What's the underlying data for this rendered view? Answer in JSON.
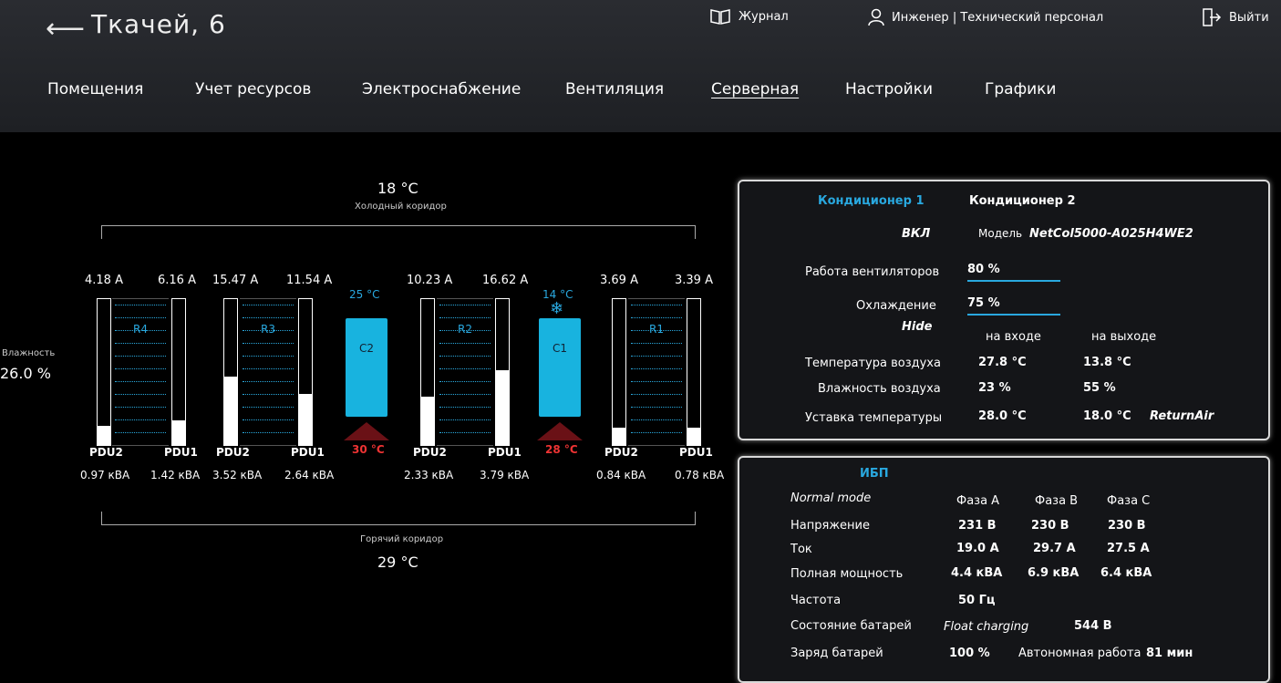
{
  "header": {
    "title": "Ткачей, 6",
    "journal": "Журнал",
    "user": "Инженер | Технический персонал",
    "logout": "Выйти"
  },
  "nav": [
    "Помещения",
    "Учет ресурсов",
    "Электроснабжение",
    "Вентиляция",
    "Серверная",
    "Настройки",
    "Графики"
  ],
  "nav_active": "Серверная",
  "room": {
    "cold_temp": "18 °С",
    "cold_label": "Холодный коридор",
    "hot_label": "Горячий коридор",
    "hot_temp": "29 °С",
    "humidity_label": "Влажность",
    "humidity_value": "26.0 %",
    "pdus": [
      {
        "amps": "4.18 A",
        "label": "PDU2",
        "kva": "0.97 кВА",
        "level": 0.13
      },
      {
        "amps": "6.16 A",
        "label": "PDU1",
        "kva": "1.42 кВА",
        "level": 0.17
      },
      {
        "amps": "15.47 A",
        "label": "PDU2",
        "kva": "3.52 кВА",
        "level": 0.47
      },
      {
        "amps": "11.54 A",
        "label": "PDU1",
        "kva": "2.64 кВА",
        "level": 0.35
      },
      {
        "amps": "10.23 A",
        "label": "PDU2",
        "kva": "2.33 кВА",
        "level": 0.33
      },
      {
        "amps": "16.62 A",
        "label": "PDU1",
        "kva": "3.79 кВА",
        "level": 0.51
      },
      {
        "amps": "3.69 A",
        "label": "PDU2",
        "kva": "0.84 кВА",
        "level": 0.12
      },
      {
        "amps": "3.39 A",
        "label": "PDU1",
        "kva": "0.78 кВА",
        "level": 0.12
      }
    ],
    "racks": [
      "R4",
      "R3",
      "R2",
      "R1"
    ],
    "coolers": [
      {
        "name": "C2",
        "top": "25 °С",
        "bottom": "30 °С"
      },
      {
        "name": "C1",
        "top": "14 °С",
        "bottom": "28 °С"
      }
    ]
  },
  "ac": {
    "tab1": "Кондиционер 1",
    "tab2": "Кондиционер 2",
    "state": "ВКЛ",
    "model_label": "Модель",
    "model_value": "NetCol5000-A025H4WE2",
    "fans_label": "Работа вентиляторов",
    "fans_value": "80 %",
    "fans_level": 0.8,
    "cooling_label": "Охлаждение",
    "cooling_value": "75 %",
    "cooling_level": 0.75,
    "hide": "Hide",
    "col_in": "на входе",
    "col_out": "на выходе",
    "rows": [
      {
        "label": "Температура воздуха",
        "in": "27.8 °С",
        "out": "13.8 °С"
      },
      {
        "label": "Влажность воздуха",
        "in": "23 %",
        "out": "55 %"
      },
      {
        "label": "Уставка температуры",
        "in": "28.0 °С",
        "out": "18.0 °С"
      }
    ],
    "return_air": "ReturnAir"
  },
  "ups": {
    "title": "ИБП",
    "mode": "Normal mode",
    "phases": [
      "Фаза А",
      "Фаза В",
      "Фаза С"
    ],
    "rows": [
      {
        "label": "Напряжение",
        "values": [
          "231 В",
          "230 В",
          "230 В"
        ]
      },
      {
        "label": "Ток",
        "values": [
          "19.0 А",
          "29.7 А",
          "27.5 А"
        ]
      },
      {
        "label": "Полная мощность",
        "values": [
          "4.4 кВА",
          "6.9 кВА",
          "6.4 кВА"
        ]
      }
    ],
    "freq_label": "Частота",
    "freq_value": "50 Гц",
    "battery_state_label": "Состояние батарей",
    "battery_state_value": "Float charging",
    "battery_voltage": "544 В",
    "charge_label": "Заряд батарей",
    "charge_value": "100 %",
    "autonomy_label": "Автономная работа",
    "autonomy_value": "81 мин"
  }
}
